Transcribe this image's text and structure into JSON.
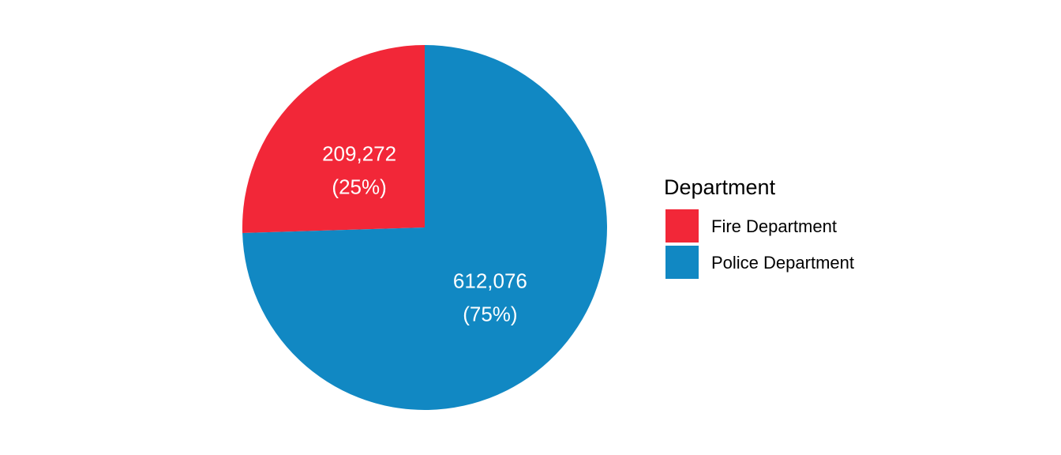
{
  "chart_data": {
    "type": "pie",
    "title": "",
    "legend": {
      "title": "Department",
      "position": "right"
    },
    "slices": [
      {
        "label": "Fire Department",
        "value": 209272,
        "value_label": "209,272",
        "percent_label": "(25%)",
        "color": "#F22738"
      },
      {
        "label": "Police Department",
        "value": 612076,
        "value_label": "612,076",
        "percent_label": "(75%)",
        "color": "#1188C3"
      }
    ]
  }
}
